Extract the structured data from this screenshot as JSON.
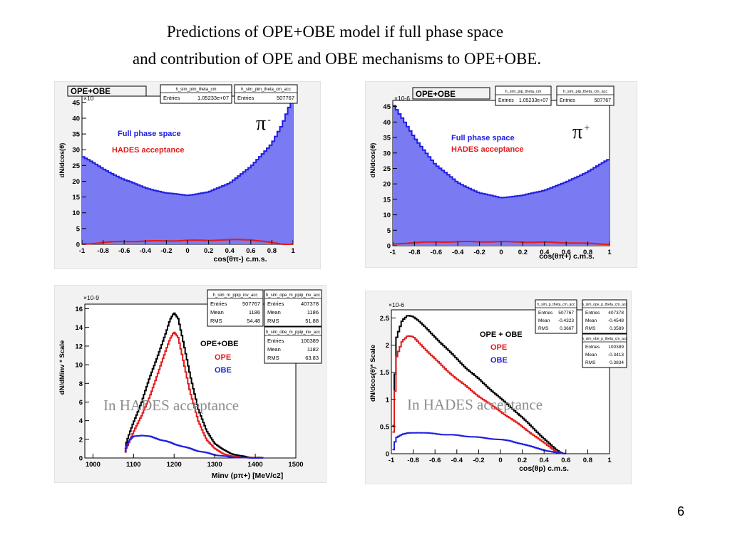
{
  "slide": {
    "title_line1": "Predictions of OPE+OBE model if full phase space",
    "title_line2": "and contribution of OPE and OBE mechanisms to OPE+OBE.",
    "page_number": "6"
  },
  "colors": {
    "blue": "#1f1fe0",
    "blue_fill": "#7a7af2",
    "red": "#e41a1a",
    "black": "#000000",
    "overlay_gray": "#8c8c8c"
  },
  "chart_data": [
    {
      "type": "area",
      "title": "OPE+OBE",
      "exponent": "×10",
      "particle": "π",
      "particle_sup": "-",
      "xlabel": "cos(θπ-)  c.m.s.",
      "ylabel": "dN/dcos(θ)",
      "xlim": [
        -1,
        1
      ],
      "ylim": [
        0,
        47
      ],
      "xticks": [
        -1,
        -0.8,
        -0.6,
        -0.4,
        -0.2,
        0,
        0.2,
        0.4,
        0.6,
        0.8,
        1
      ],
      "yticks": [
        0,
        5,
        10,
        15,
        20,
        25,
        30,
        35,
        40,
        45
      ],
      "x": [
        -1,
        -0.8,
        -0.6,
        -0.4,
        -0.2,
        0,
        0.2,
        0.4,
        0.6,
        0.8,
        0.9,
        1
      ],
      "series": [
        {
          "name": "Full phase space",
          "color": "blue",
          "values": [
            28,
            24,
            20.5,
            18,
            16.2,
            15.6,
            16.5,
            19.5,
            24.5,
            32,
            38,
            46.5
          ]
        },
        {
          "name": "HADES acceptance",
          "color": "red",
          "values": [
            0,
            0.6,
            0.9,
            1.0,
            1.1,
            1.2,
            1.3,
            1.4,
            1.5,
            0.5,
            0,
            0
          ]
        }
      ],
      "stats": [
        {
          "name": "h_sim_pim_theta_cm",
          "rows": [
            [
              "Entries",
              "1.05233e+07"
            ]
          ]
        },
        {
          "name": "h_sim_pim_theta_cm_acc",
          "rows": [
            [
              "Entries",
              "507767"
            ]
          ]
        }
      ]
    },
    {
      "type": "area",
      "title": "OPE+OBE",
      "exponent": "×10-6",
      "particle": "π",
      "particle_sup": "+",
      "xlabel": "cos(θπ+)  c.m.s.",
      "ylabel": "dN/dcos(θ)",
      "xlim": [
        -1,
        1
      ],
      "ylim": [
        0,
        47
      ],
      "xticks": [
        -1,
        -0.8,
        -0.6,
        -0.4,
        -0.2,
        0,
        0.2,
        0.4,
        0.6,
        0.8,
        1
      ],
      "yticks": [
        0,
        5,
        10,
        15,
        20,
        25,
        30,
        35,
        40,
        45
      ],
      "x": [
        -1,
        -0.9,
        -0.8,
        -0.6,
        -0.4,
        -0.2,
        0,
        0.2,
        0.4,
        0.6,
        0.8,
        1
      ],
      "series": [
        {
          "name": "Full phase space",
          "color": "blue",
          "values": [
            46,
            40.5,
            35,
            26,
            20.5,
            17,
            15.6,
            16.2,
            18,
            20.5,
            24,
            28
          ]
        },
        {
          "name": "HADES acceptance",
          "color": "red",
          "values": [
            0.5,
            0.8,
            1.0,
            1.2,
            1.3,
            1.3,
            1.3,
            1.2,
            1.1,
            1.0,
            0.7,
            0.5
          ]
        }
      ],
      "stats": [
        {
          "name": "h_sim_pip_theta_cm",
          "rows": [
            [
              "Entries",
              "1.05233e+07"
            ]
          ]
        },
        {
          "name": "h_sim_pip_theta_cm_acc",
          "rows": [
            [
              "Entries",
              "507767"
            ]
          ]
        }
      ]
    },
    {
      "type": "line",
      "overlay": "In HADES acceptance",
      "exponent": "×10-9",
      "xlabel": "Minv (pπ+)   [MeV/c2]",
      "ylabel": "dN/dMinv * Scale",
      "xlim": [
        980,
        1500
      ],
      "ylim": [
        0,
        16.5
      ],
      "xticks": [
        1000,
        1100,
        1200,
        1300,
        1400,
        1500
      ],
      "yticks": [
        0,
        2,
        4,
        6,
        8,
        10,
        12,
        14,
        16
      ],
      "x": [
        1078,
        1080,
        1090,
        1100,
        1120,
        1140,
        1160,
        1180,
        1190,
        1200,
        1210,
        1220,
        1240,
        1260,
        1280,
        1300,
        1320,
        1340,
        1360,
        1380,
        1400,
        1420
      ],
      "series": [
        {
          "name": "OPE+OBE",
          "color": "black",
          "values": [
            0,
            1.3,
            2.6,
            3.8,
            6.0,
            8.6,
            11.0,
            13.4,
            14.8,
            15.6,
            15.0,
            13.0,
            8.8,
            5.2,
            2.9,
            1.6,
            0.9,
            0.5,
            0.25,
            0.1,
            0.04,
            0
          ]
        },
        {
          "name": "OPE",
          "color": "red",
          "values": [
            0,
            0.8,
            1.8,
            2.8,
            4.5,
            6.6,
            9.0,
            11.6,
            12.8,
            13.5,
            12.9,
            11.0,
            7.0,
            3.9,
            2.0,
            1.0,
            0.5,
            0.2,
            0.1,
            0.05,
            0,
            0
          ]
        },
        {
          "name": "OBE",
          "color": "blue",
          "values": [
            0,
            1.0,
            1.9,
            2.3,
            2.45,
            2.3,
            2.05,
            1.8,
            1.65,
            1.5,
            1.4,
            1.25,
            1.0,
            0.75,
            0.55,
            0.35,
            0.2,
            0.1,
            0.05,
            0.02,
            0,
            0
          ]
        }
      ],
      "stats": [
        {
          "name": "h_sim_m_ppip_inv_acc",
          "rows": [
            [
              "Entries",
              "507767"
            ],
            [
              "Mean",
              "1186"
            ],
            [
              "RMS",
              "54.48"
            ]
          ]
        },
        {
          "name": "h_sim_ope_m_ppip_inv_acc",
          "rows": [
            [
              "Entries",
              "407378"
            ],
            [
              "Mean",
              "1186"
            ],
            [
              "RMS",
              "51.88"
            ]
          ]
        },
        {
          "name": "h_sim_obe_m_ppip_inv_acc",
          "rows": [
            [
              "Entries",
              "100389"
            ],
            [
              "Mean",
              "1182"
            ],
            [
              "RMS",
              "63.83"
            ]
          ]
        }
      ]
    },
    {
      "type": "line",
      "overlay": "In HADES acceptance",
      "exponent": "×10-6",
      "xlabel": "cos(θp)  c.m.s.",
      "ylabel": "dN/dcos(θ)* Scale",
      "xlim": [
        -1,
        1
      ],
      "ylim": [
        0,
        2.65
      ],
      "xticks": [
        -1,
        -0.8,
        -0.6,
        -0.4,
        -0.2,
        0,
        0.2,
        0.4,
        0.6,
        0.8,
        1
      ],
      "yticks": [
        0,
        0.5,
        1,
        1.5,
        2,
        2.5
      ],
      "x": [
        -0.99,
        -0.97,
        -0.95,
        -0.9,
        -0.85,
        -0.8,
        -0.75,
        -0.7,
        -0.6,
        -0.5,
        -0.4,
        -0.3,
        -0.2,
        -0.1,
        0,
        0.1,
        0.2,
        0.3,
        0.4,
        0.5,
        0.55,
        0.6
      ],
      "series": [
        {
          "name": "OPE + OBE",
          "color": "black",
          "values": [
            0,
            1.3,
            2.15,
            2.45,
            2.55,
            2.53,
            2.45,
            2.35,
            2.15,
            1.95,
            1.75,
            1.55,
            1.38,
            1.2,
            1.02,
            0.85,
            0.67,
            0.47,
            0.28,
            0.09,
            0.02,
            0
          ]
        },
        {
          "name": "OPE",
          "color": "red",
          "values": [
            0,
            1.0,
            1.8,
            2.08,
            2.17,
            2.15,
            2.05,
            1.95,
            1.75,
            1.55,
            1.38,
            1.22,
            1.06,
            0.92,
            0.78,
            0.64,
            0.5,
            0.35,
            0.2,
            0.06,
            0.01,
            0
          ]
        },
        {
          "name": "OBE",
          "color": "blue",
          "values": [
            0,
            0.2,
            0.3,
            0.35,
            0.38,
            0.39,
            0.39,
            0.38,
            0.37,
            0.35,
            0.34,
            0.32,
            0.3,
            0.28,
            0.26,
            0.23,
            0.18,
            0.12,
            0.07,
            0.02,
            0.01,
            0
          ]
        }
      ],
      "stats": [
        {
          "name": "h_sim_p_theta_cm_acc",
          "rows": [
            [
              "Entries",
              "507767"
            ],
            [
              "Mean",
              "-0.4323"
            ],
            [
              "RMS",
              "0.3667"
            ]
          ]
        },
        {
          "name": "h_sim_ope_p_theta_cm_acc",
          "rows": [
            [
              "Entries",
              "407378"
            ],
            [
              "Mean",
              "-0.4548"
            ],
            [
              "RMS",
              "0.3589"
            ]
          ]
        },
        {
          "name": "h_sim_obe_p_theta_cm_acc",
          "rows": [
            [
              "Entries",
              "100389"
            ],
            [
              "Mean",
              "-0.3413"
            ],
            [
              "RMS",
              "0.3834"
            ]
          ]
        }
      ]
    }
  ]
}
